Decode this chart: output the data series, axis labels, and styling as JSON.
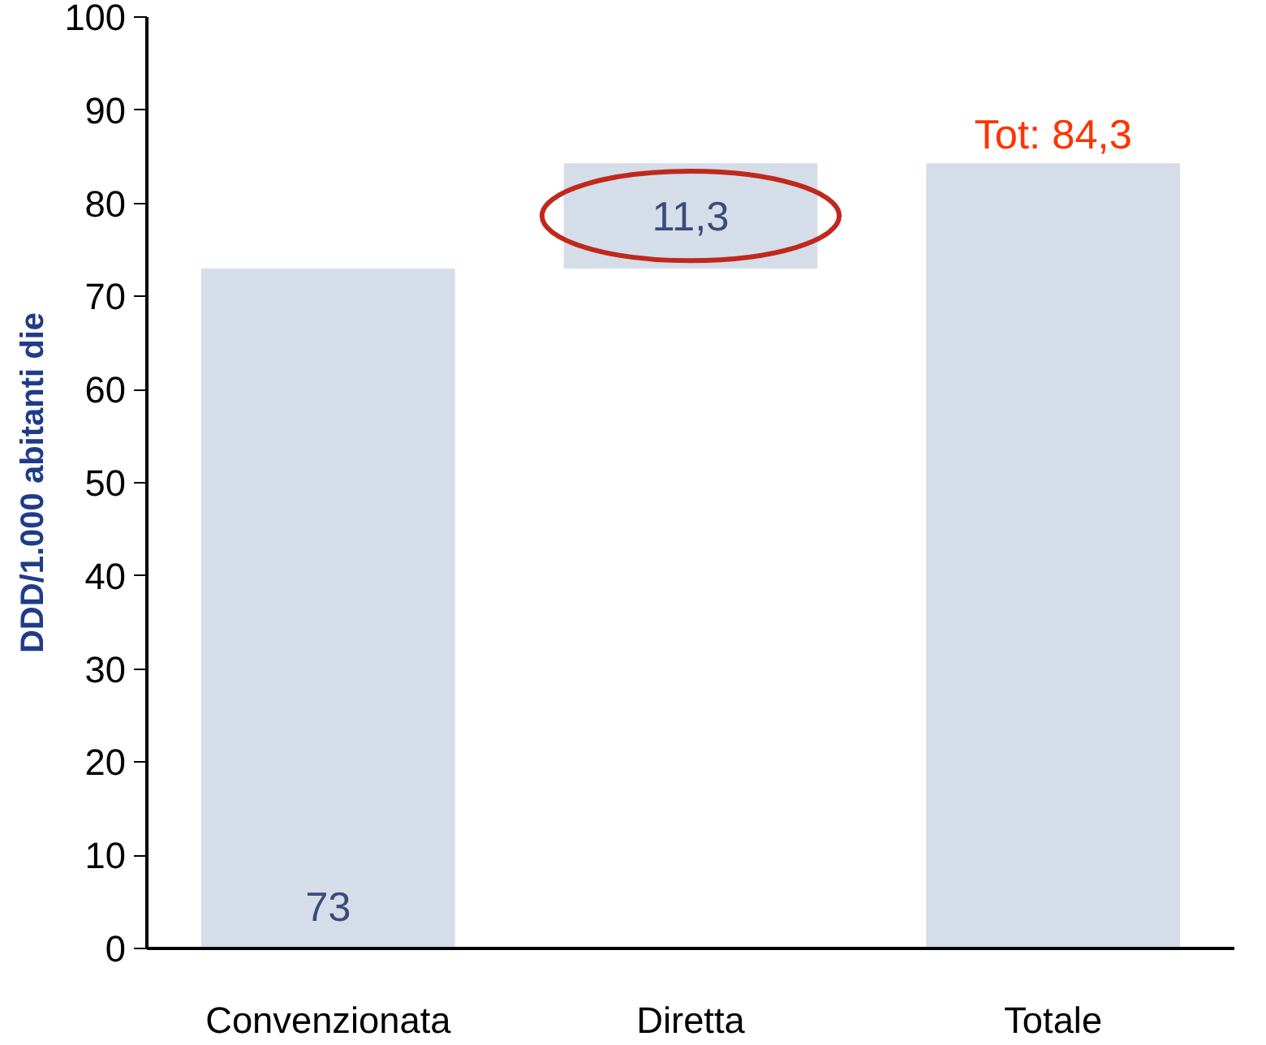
{
  "chart_data": {
    "type": "bar",
    "ylabel": "DDD/1.000 abitanti die",
    "categories": [
      "Convenzionata",
      "Diretta",
      "Totale"
    ],
    "values": [
      73,
      11.3,
      84.3
    ],
    "base": [
      0,
      73,
      0
    ],
    "color": "#d5dde8",
    "value_labels": [
      "73",
      "11,3",
      "Tot: 84,3"
    ],
    "ylim": [
      0,
      100
    ],
    "yticks": [
      0,
      10,
      20,
      30,
      40,
      50,
      60,
      70,
      80,
      90,
      100
    ],
    "grid": false
  }
}
